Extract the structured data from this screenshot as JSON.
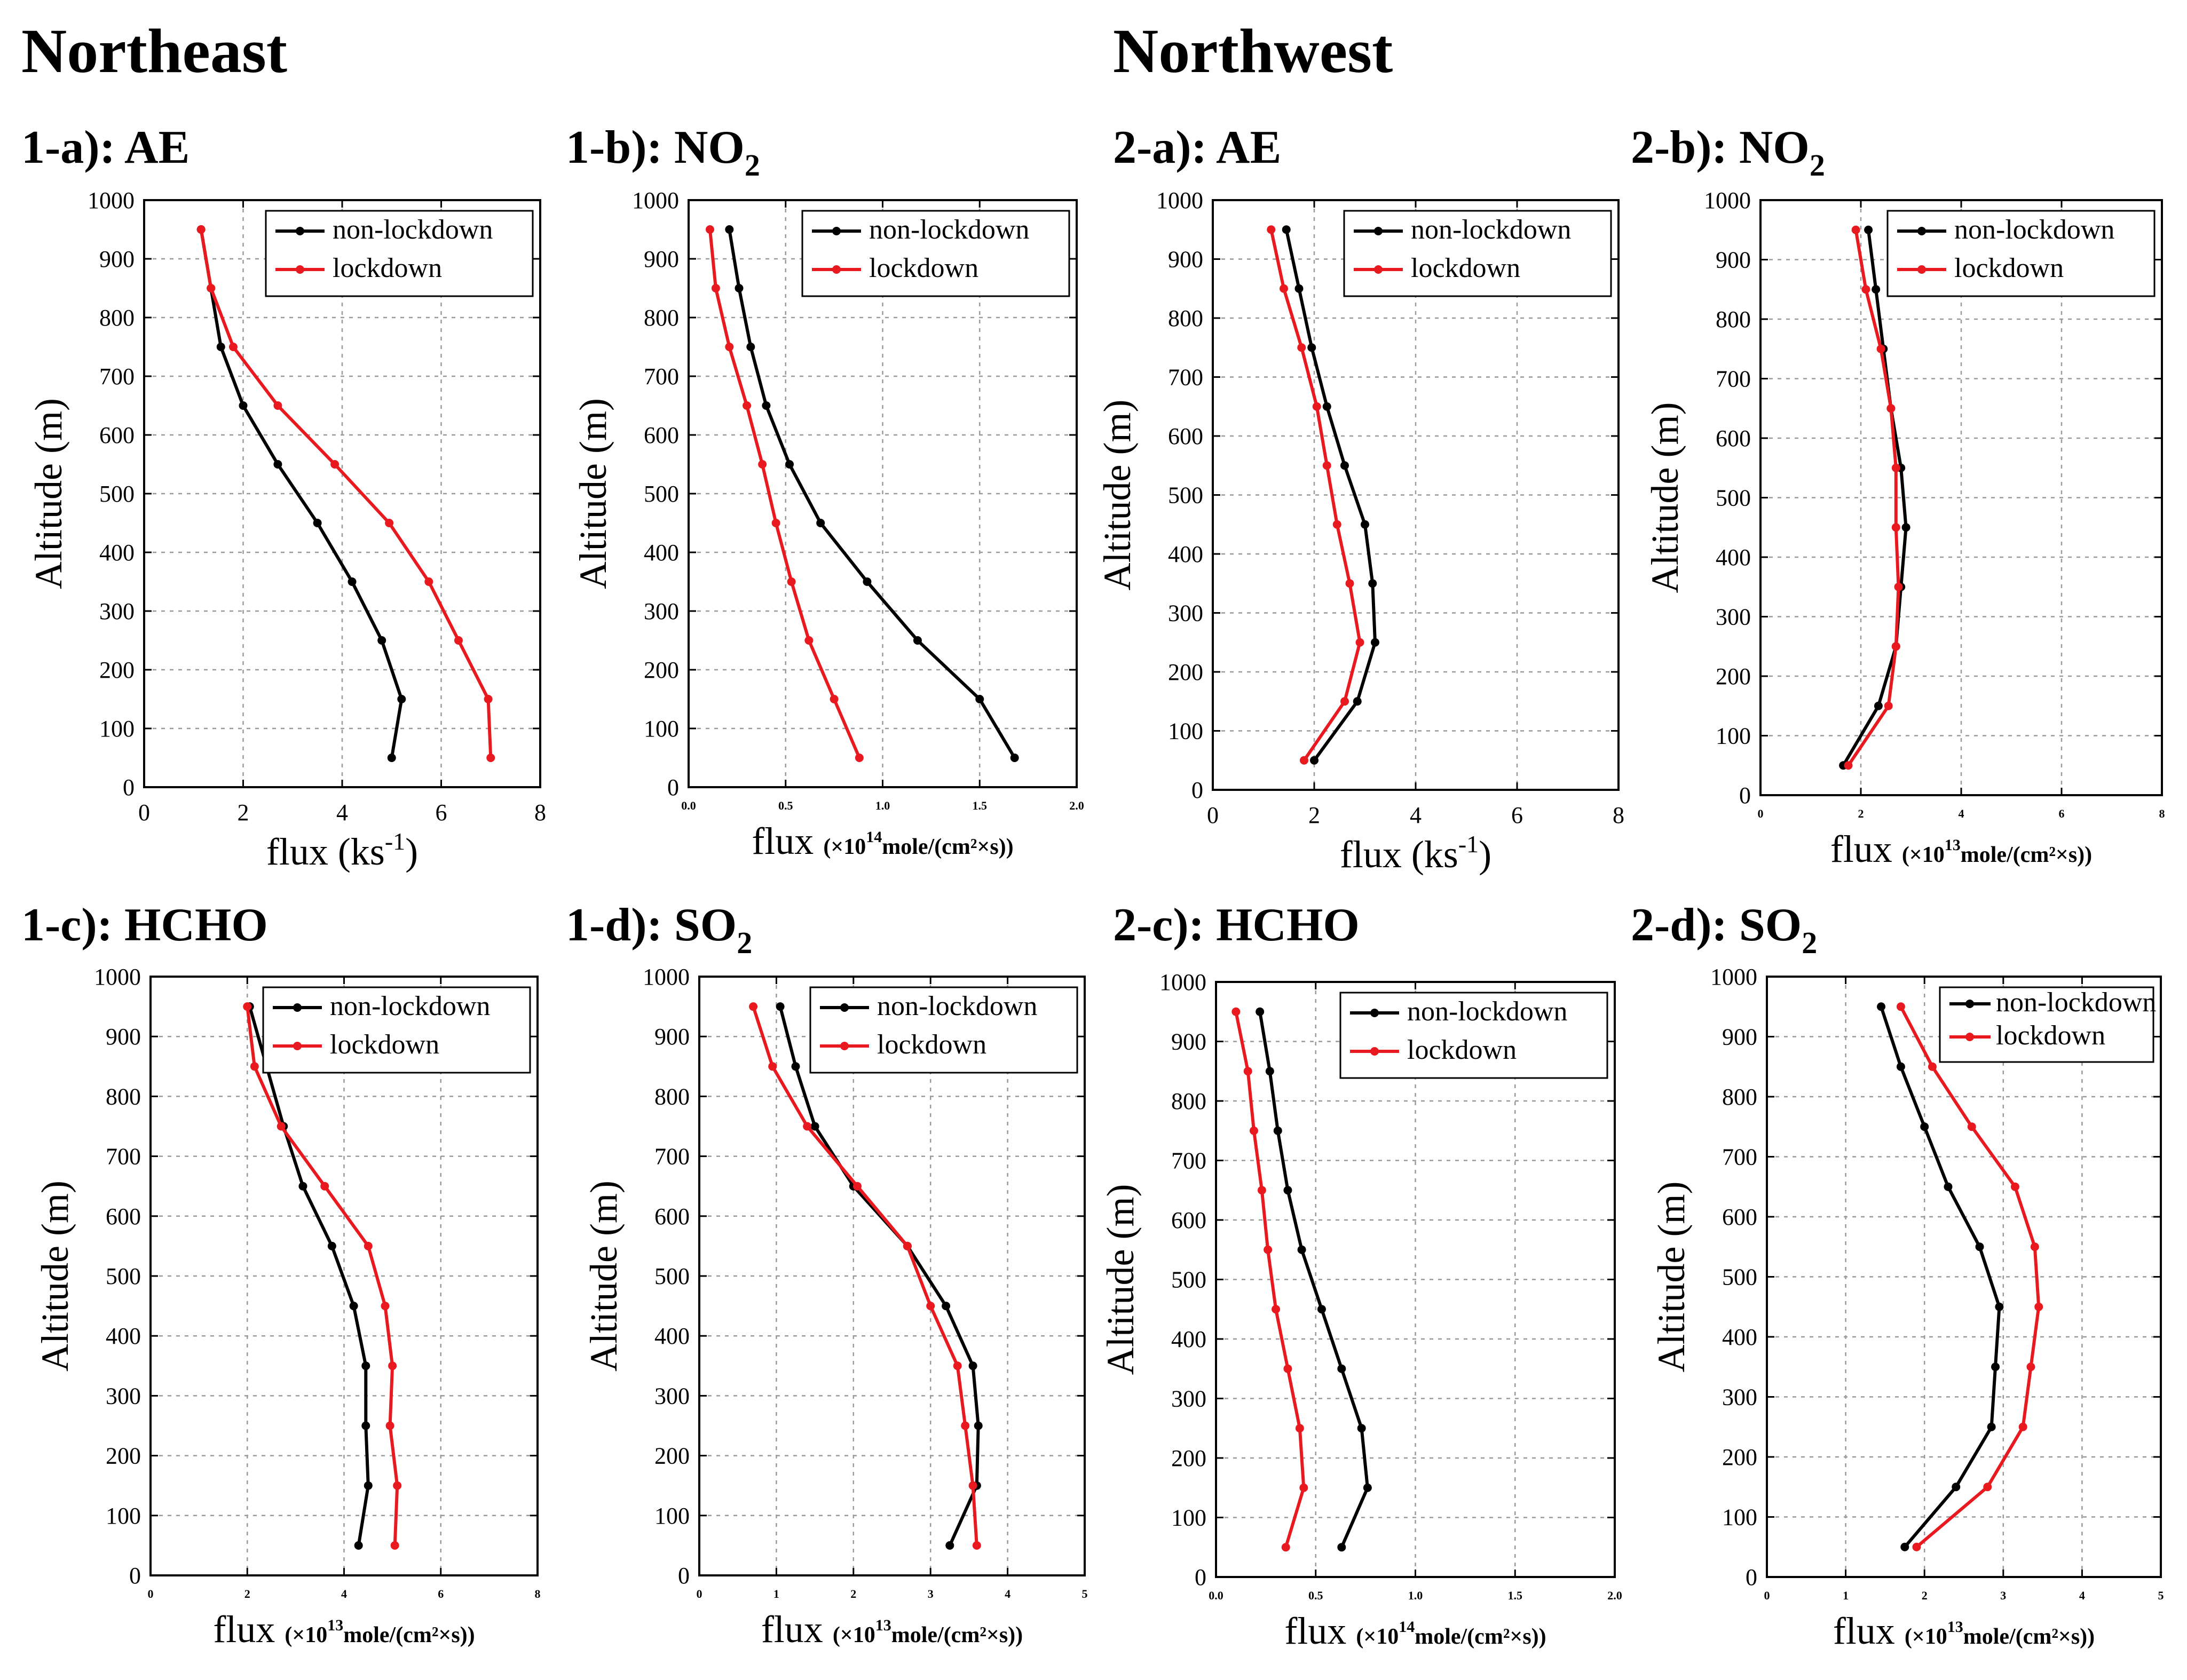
{
  "regions": [
    "Northeast",
    "Northwest"
  ],
  "chart_data": [
    {
      "id": "1-a",
      "type": "line",
      "title_main": "1-a): AE",
      "title_sub": "",
      "xlabel": "flux (ks",
      "xunit_sup": "-1",
      "xunit_tail": ")",
      "xlabel_style": "plain",
      "ylabel": "Altitude (m)",
      "xlim": [
        0,
        8
      ],
      "ylim": [
        0,
        1000
      ],
      "xticks": [
        "0",
        "2",
        "4",
        "6",
        "8"
      ],
      "xtick_style": "normal",
      "yticks": [
        "0",
        "100",
        "200",
        "300",
        "400",
        "500",
        "600",
        "700",
        "800",
        "900",
        "1000"
      ],
      "grid": true,
      "legend_position": "top-right",
      "y": [
        50,
        150,
        250,
        350,
        450,
        550,
        650,
        750,
        850,
        950
      ],
      "series": [
        {
          "name": "non-lockdown",
          "color": "#000000",
          "x": [
            5.0,
            5.2,
            4.8,
            4.2,
            3.5,
            2.7,
            2.0,
            1.55,
            1.35,
            1.15
          ]
        },
        {
          "name": "lockdown",
          "color": "#e8191f",
          "x": [
            7.0,
            6.95,
            6.35,
            5.75,
            4.95,
            3.85,
            2.7,
            1.8,
            1.35,
            1.15
          ]
        }
      ]
    },
    {
      "id": "1-b",
      "type": "line",
      "title_main": "1-b): NO",
      "title_sub": "2",
      "xlabel": "flux",
      "xunit": "(×10",
      "xunit_sup": "14",
      "xunit_tail": "mole/(cm²×s))",
      "xlabel_style": "sci",
      "ylabel": "Altitude (m)",
      "xlim": [
        0,
        2
      ],
      "ylim": [
        0,
        1000
      ],
      "xticks": [
        "0.0",
        "0.5",
        "1.0",
        "1.5",
        "2.0"
      ],
      "xtick_style": "small",
      "yticks": [
        "0",
        "100",
        "200",
        "300",
        "400",
        "500",
        "600",
        "700",
        "800",
        "900",
        "1000"
      ],
      "grid": true,
      "legend_position": "top-right",
      "y": [
        50,
        150,
        250,
        350,
        450,
        550,
        650,
        750,
        850,
        950
      ],
      "series": [
        {
          "name": "non-lockdown",
          "color": "#000000",
          "x": [
            1.68,
            1.5,
            1.18,
            0.92,
            0.68,
            0.52,
            0.4,
            0.32,
            0.26,
            0.21
          ]
        },
        {
          "name": "lockdown",
          "color": "#e8191f",
          "x": [
            0.88,
            0.75,
            0.62,
            0.53,
            0.45,
            0.38,
            0.3,
            0.21,
            0.14,
            0.11
          ]
        }
      ]
    },
    {
      "id": "1-c",
      "type": "line",
      "title_main": "1-c): HCHO",
      "title_sub": "",
      "xlabel": "flux",
      "xunit": "(×10",
      "xunit_sup": "13",
      "xunit_tail": "mole/(cm²×s))",
      "xlabel_style": "sci",
      "ylabel": "Altitude (m)",
      "xlim": [
        0,
        8
      ],
      "ylim": [
        0,
        1000
      ],
      "xticks": [
        "0",
        "2",
        "4",
        "6",
        "8"
      ],
      "xtick_style": "small",
      "yticks": [
        "0",
        "100",
        "200",
        "300",
        "400",
        "500",
        "600",
        "700",
        "800",
        "900",
        "1000"
      ],
      "grid": true,
      "legend_position": "top-right",
      "y": [
        50,
        150,
        250,
        350,
        450,
        550,
        650,
        750,
        850,
        950
      ],
      "series": [
        {
          "name": "non-lockdown",
          "color": "#000000",
          "x": [
            4.3,
            4.5,
            4.45,
            4.45,
            4.2,
            3.75,
            3.15,
            2.75,
            2.4,
            2.05
          ]
        },
        {
          "name": "lockdown",
          "color": "#e8191f",
          "x": [
            5.05,
            5.1,
            4.95,
            5.0,
            4.85,
            4.5,
            3.6,
            2.7,
            2.15,
            2.0
          ]
        }
      ]
    },
    {
      "id": "1-d",
      "type": "line",
      "title_main": "1-d): SO",
      "title_sub": "2",
      "xlabel": "flux",
      "xunit": "(×10",
      "xunit_sup": "13",
      "xunit_tail": "mole/(cm²×s))",
      "xlabel_style": "sci",
      "ylabel": "Altitude (m)",
      "xlim": [
        0,
        5
      ],
      "ylim": [
        0,
        1000
      ],
      "xticks": [
        "0",
        "1",
        "2",
        "3",
        "4",
        "5"
      ],
      "xtick_style": "small",
      "yticks": [
        "0",
        "100",
        "200",
        "300",
        "400",
        "500",
        "600",
        "700",
        "800",
        "900",
        "1000"
      ],
      "grid": true,
      "legend_position": "top-right",
      "y": [
        50,
        150,
        250,
        350,
        450,
        550,
        650,
        750,
        850,
        950
      ],
      "series": [
        {
          "name": "non-lockdown",
          "color": "#000000",
          "x": [
            3.25,
            3.6,
            3.62,
            3.55,
            3.2,
            2.7,
            2.0,
            1.5,
            1.25,
            1.05
          ]
        },
        {
          "name": "lockdown",
          "color": "#e8191f",
          "x": [
            3.6,
            3.55,
            3.45,
            3.35,
            3.0,
            2.7,
            2.05,
            1.4,
            0.95,
            0.7
          ]
        }
      ]
    },
    {
      "id": "2-a",
      "type": "line",
      "title_main": "2-a): AE",
      "title_sub": "",
      "xlabel": "flux (ks",
      "xunit_sup": "-1",
      "xunit_tail": ")",
      "xlabel_style": "plain",
      "ylabel": "Altitude (m)",
      "xlim": [
        0,
        8
      ],
      "ylim": [
        0,
        1000
      ],
      "xticks": [
        "0",
        "2",
        "4",
        "6",
        "8"
      ],
      "xtick_style": "normal",
      "yticks": [
        "0",
        "100",
        "200",
        "300",
        "400",
        "500",
        "600",
        "700",
        "800",
        "900",
        "1000"
      ],
      "grid": true,
      "legend_position": "top-right",
      "y": [
        50,
        150,
        250,
        350,
        450,
        550,
        650,
        750,
        850,
        950
      ],
      "series": [
        {
          "name": "non-lockdown",
          "color": "#000000",
          "x": [
            2.0,
            2.85,
            3.2,
            3.15,
            3.0,
            2.6,
            2.25,
            1.95,
            1.7,
            1.45
          ]
        },
        {
          "name": "lockdown",
          "color": "#e8191f",
          "x": [
            1.8,
            2.6,
            2.9,
            2.7,
            2.45,
            2.25,
            2.05,
            1.75,
            1.4,
            1.15
          ]
        }
      ]
    },
    {
      "id": "2-b",
      "type": "line",
      "title_main": "2-b): NO",
      "title_sub": "2",
      "xlabel": "flux",
      "xunit": "(×10",
      "xunit_sup": "13",
      "xunit_tail": "mole/(cm²×s))",
      "xlabel_style": "sci",
      "ylabel": "Altitude (m)",
      "xlim": [
        0,
        8
      ],
      "ylim": [
        0,
        1000
      ],
      "xticks": [
        "0",
        "2",
        "4",
        "6",
        "8"
      ],
      "xtick_style": "small",
      "yticks": [
        "0",
        "100",
        "200",
        "300",
        "400",
        "500",
        "600",
        "700",
        "800",
        "900",
        "1000"
      ],
      "grid": true,
      "legend_position": "top-right",
      "y": [
        50,
        150,
        250,
        350,
        450,
        550,
        650,
        750,
        850,
        950
      ],
      "series": [
        {
          "name": "non-lockdown",
          "color": "#000000",
          "x": [
            1.65,
            2.35,
            2.7,
            2.8,
            2.9,
            2.8,
            2.6,
            2.45,
            2.3,
            2.15
          ]
        },
        {
          "name": "lockdown",
          "color": "#e8191f",
          "x": [
            1.75,
            2.55,
            2.7,
            2.75,
            2.7,
            2.7,
            2.6,
            2.4,
            2.1,
            1.9
          ]
        }
      ]
    },
    {
      "id": "2-c",
      "type": "line",
      "title_main": "2-c): HCHO",
      "title_sub": "",
      "xlabel": "flux",
      "xunit": "(×10",
      "xunit_sup": "14",
      "xunit_tail": "mole/(cm²×s))",
      "xlabel_style": "sci",
      "ylabel": "Altitude (m)",
      "xlim": [
        0,
        2
      ],
      "ylim": [
        0,
        1000
      ],
      "xticks": [
        "0.0",
        "0.5",
        "1.0",
        "1.5",
        "2.0"
      ],
      "xtick_style": "small",
      "yticks": [
        "0",
        "100",
        "200",
        "300",
        "400",
        "500",
        "600",
        "700",
        "800",
        "900",
        "1000"
      ],
      "grid": true,
      "legend_position": "top-right",
      "y": [
        50,
        150,
        250,
        350,
        450,
        550,
        650,
        750,
        850,
        950
      ],
      "series": [
        {
          "name": "non-lockdown",
          "color": "#000000",
          "x": [
            0.63,
            0.76,
            0.73,
            0.63,
            0.53,
            0.43,
            0.36,
            0.31,
            0.27,
            0.22
          ]
        },
        {
          "name": "lockdown",
          "color": "#e8191f",
          "x": [
            0.35,
            0.44,
            0.42,
            0.36,
            0.3,
            0.26,
            0.23,
            0.19,
            0.16,
            0.1
          ]
        }
      ]
    },
    {
      "id": "2-d",
      "type": "line",
      "title_main": "2-d): SO",
      "title_sub": "2",
      "xlabel": "flux",
      "xunit": "(×10",
      "xunit_sup": "13",
      "xunit_tail": "mole/(cm²×s))",
      "xlabel_style": "sci",
      "ylabel": "Altitude (m)",
      "xlim": [
        0,
        5
      ],
      "ylim": [
        0,
        1000
      ],
      "xticks": [
        "0",
        "1",
        "2",
        "3",
        "4",
        "5"
      ],
      "xtick_style": "small",
      "yticks": [
        "0",
        "100",
        "200",
        "300",
        "400",
        "500",
        "600",
        "700",
        "800",
        "900",
        "1000"
      ],
      "grid": true,
      "legend_position": "top-right",
      "legend_small": true,
      "y": [
        50,
        150,
        250,
        350,
        450,
        550,
        650,
        750,
        850,
        950
      ],
      "series": [
        {
          "name": "non-lockdown",
          "color": "#000000",
          "x": [
            1.75,
            2.4,
            2.85,
            2.9,
            2.95,
            2.7,
            2.3,
            2.0,
            1.7,
            1.45
          ]
        },
        {
          "name": "lockdown",
          "color": "#e8191f",
          "x": [
            1.9,
            2.8,
            3.25,
            3.35,
            3.45,
            3.4,
            3.15,
            2.6,
            2.1,
            1.7
          ]
        }
      ]
    }
  ]
}
